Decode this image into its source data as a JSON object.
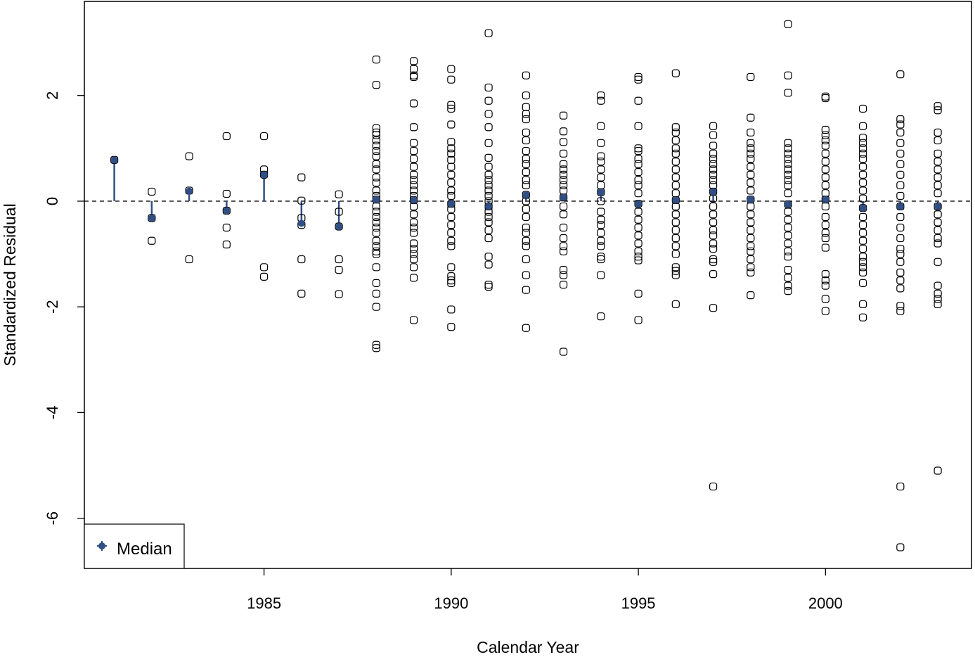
{
  "chart_data": {
    "type": "scatter",
    "xlabel": "Calendar Year",
    "ylabel": "Standardized Residual",
    "xlim": [
      1980.2,
      2003.9
    ],
    "ylim": [
      -6.95,
      3.78
    ],
    "x_ticks": [
      1985,
      1990,
      1995,
      2000
    ],
    "y_ticks": [
      -6,
      -4,
      -2,
      0,
      2
    ],
    "reference_line": {
      "y": 0,
      "style": "dashed"
    },
    "legend": {
      "position": "bottom-left",
      "entries": [
        "Median"
      ]
    },
    "colors": {
      "median": "#2f4f85",
      "points": "#000000"
    },
    "median": {
      "name": "Median",
      "x": [
        1981,
        1982,
        1983,
        1984,
        1985,
        1986,
        1987,
        1988,
        1989,
        1990,
        1991,
        1992,
        1993,
        1994,
        1995,
        1996,
        1997,
        1998,
        1999,
        2000,
        2001,
        2002,
        2003
      ],
      "y": [
        0.78,
        -0.32,
        0.19,
        -0.18,
        0.5,
        -0.42,
        -0.48,
        0.03,
        0.02,
        -0.05,
        -0.1,
        0.12,
        0.07,
        0.17,
        -0.05,
        0.02,
        0.18,
        0.03,
        -0.06,
        0.03,
        -0.13,
        -0.1,
        -0.1
      ]
    },
    "points": [
      {
        "x": 1981,
        "y": [
          0.78
        ]
      },
      {
        "x": 1982,
        "y": [
          0.18,
          -0.32,
          -0.75
        ]
      },
      {
        "x": 1983,
        "y": [
          0.85,
          0.2,
          -1.1
        ]
      },
      {
        "x": 1984,
        "y": [
          1.23,
          0.14,
          -0.18,
          -0.5,
          -0.82
        ]
      },
      {
        "x": 1985,
        "y": [
          1.23,
          0.6,
          0.5,
          -1.25,
          -1.43
        ]
      },
      {
        "x": 1986,
        "y": [
          0.45,
          0.01,
          -0.32,
          -0.45,
          -1.1,
          -1.75
        ]
      },
      {
        "x": 1987,
        "y": [
          0.13,
          -0.2,
          -0.48,
          -1.1,
          -1.3,
          -1.76
        ]
      },
      {
        "x": 1988,
        "y": [
          2.68,
          2.2,
          1.38,
          1.3,
          1.25,
          1.15,
          1.05,
          0.95,
          0.85,
          0.7,
          0.6,
          0.45,
          0.35,
          0.2,
          0.1,
          0.03,
          -0.1,
          -0.2,
          -0.3,
          -0.4,
          -0.5,
          -0.6,
          -0.75,
          -0.85,
          -0.95,
          -1.0,
          -1.25,
          -1.55,
          -1.75,
          -2.0,
          -2.72,
          -2.78
        ]
      },
      {
        "x": 1989,
        "y": [
          2.65,
          2.5,
          2.38,
          2.35,
          1.85,
          1.4,
          1.1,
          0.95,
          0.8,
          0.65,
          0.5,
          0.4,
          0.3,
          0.2,
          0.1,
          0.02,
          -0.1,
          -0.25,
          -0.4,
          -0.5,
          -0.6,
          -0.8,
          -0.9,
          -1.0,
          -1.1,
          -1.25,
          -1.45,
          -2.25
        ]
      },
      {
        "x": 1990,
        "y": [
          2.5,
          2.3,
          1.82,
          1.75,
          1.45,
          1.12,
          1.0,
          0.9,
          0.78,
          0.65,
          0.5,
          0.35,
          0.2,
          0.1,
          -0.05,
          -0.15,
          -0.3,
          -0.45,
          -0.6,
          -0.75,
          -0.85,
          -1.25,
          -1.42,
          -1.5,
          -1.55,
          -2.05,
          -2.38
        ]
      },
      {
        "x": 1991,
        "y": [
          3.18,
          2.15,
          1.9,
          1.65,
          1.4,
          1.1,
          0.82,
          0.65,
          0.5,
          0.4,
          0.3,
          0.2,
          0.1,
          0.0,
          -0.1,
          -0.2,
          -0.3,
          -0.4,
          -0.55,
          -0.7,
          -1.05,
          -1.2,
          -1.58,
          -1.62
        ]
      },
      {
        "x": 1992,
        "y": [
          2.38,
          2.0,
          1.78,
          1.65,
          1.55,
          1.3,
          1.15,
          0.95,
          0.8,
          0.7,
          0.55,
          0.4,
          0.3,
          0.12,
          0.0,
          -0.15,
          -0.3,
          -0.5,
          -0.6,
          -0.75,
          -0.85,
          -1.1,
          -1.4,
          -1.68,
          -2.4
        ]
      },
      {
        "x": 1993,
        "y": [
          1.62,
          1.32,
          1.12,
          0.9,
          0.7,
          0.6,
          0.5,
          0.4,
          0.3,
          0.2,
          0.07,
          -0.1,
          -0.25,
          -0.5,
          -0.7,
          -0.85,
          -0.95,
          -1.3,
          -1.4,
          -1.58,
          -2.85
        ]
      },
      {
        "x": 1994,
        "y": [
          2.0,
          1.9,
          1.42,
          1.1,
          0.85,
          0.75,
          0.6,
          0.45,
          0.3,
          0.17,
          0.0,
          -0.2,
          -0.35,
          -0.45,
          -0.6,
          -0.75,
          -0.85,
          -1.05,
          -1.1,
          -1.4,
          -2.18
        ]
      },
      {
        "x": 1995,
        "y": [
          2.35,
          2.3,
          1.9,
          1.42,
          1.0,
          0.95,
          0.8,
          0.7,
          0.55,
          0.4,
          0.3,
          0.15,
          -0.05,
          -0.2,
          -0.35,
          -0.5,
          -0.65,
          -0.8,
          -0.95,
          -1.05,
          -1.12,
          -1.75,
          -2.25
        ]
      },
      {
        "x": 1996,
        "y": [
          2.42,
          1.4,
          1.3,
          1.15,
          1.0,
          0.9,
          0.75,
          0.6,
          0.45,
          0.3,
          0.15,
          0.02,
          -0.1,
          -0.25,
          -0.4,
          -0.55,
          -0.7,
          -0.85,
          -1.0,
          -1.25,
          -1.32,
          -1.4,
          -1.95
        ]
      },
      {
        "x": 1997,
        "y": [
          1.42,
          1.25,
          1.05,
          0.9,
          0.8,
          0.7,
          0.6,
          0.5,
          0.4,
          0.3,
          0.18,
          0.05,
          -0.1,
          -0.25,
          -0.4,
          -0.55,
          -0.65,
          -0.8,
          -0.9,
          -1.1,
          -1.15,
          -1.38,
          -2.02,
          -5.4
        ]
      },
      {
        "x": 1998,
        "y": [
          2.35,
          1.58,
          1.3,
          1.1,
          1.0,
          0.9,
          0.8,
          0.65,
          0.5,
          0.35,
          0.2,
          0.03,
          -0.1,
          -0.25,
          -0.4,
          -0.55,
          -0.7,
          -0.85,
          -0.95,
          -1.1,
          -1.25,
          -1.35,
          -1.78
        ]
      },
      {
        "x": 1999,
        "y": [
          3.35,
          2.38,
          2.05,
          1.1,
          1.0,
          0.9,
          0.8,
          0.7,
          0.6,
          0.5,
          0.4,
          0.3,
          0.15,
          -0.06,
          -0.2,
          -0.35,
          -0.5,
          -0.65,
          -0.8,
          -0.95,
          -1.05,
          -1.3,
          -1.45,
          -1.6,
          -1.7
        ]
      },
      {
        "x": 2000,
        "y": [
          1.98,
          1.95,
          1.35,
          1.25,
          1.15,
          1.05,
          0.9,
          0.75,
          0.6,
          0.45,
          0.3,
          0.15,
          0.03,
          -0.1,
          -0.3,
          -0.45,
          -0.6,
          -0.7,
          -0.88,
          -1.38,
          -1.5,
          -1.6,
          -1.85,
          -2.08
        ]
      },
      {
        "x": 2001,
        "y": [
          1.75,
          1.42,
          1.2,
          1.1,
          1.0,
          0.9,
          0.8,
          0.65,
          0.5,
          0.35,
          0.2,
          0.05,
          -0.13,
          -0.3,
          -0.45,
          -0.6,
          -0.75,
          -0.9,
          -1.05,
          -1.15,
          -1.25,
          -1.35,
          -1.55,
          -1.95,
          -2.2
        ]
      },
      {
        "x": 2002,
        "y": [
          2.4,
          1.55,
          1.45,
          1.3,
          1.1,
          0.9,
          0.7,
          0.5,
          0.3,
          0.1,
          -0.1,
          -0.3,
          -0.5,
          -0.7,
          -0.9,
          -1.0,
          -1.15,
          -1.35,
          -1.5,
          -1.65,
          -1.98,
          -2.08,
          -5.4,
          -6.55
        ]
      },
      {
        "x": 2003,
        "y": [
          1.8,
          1.72,
          1.3,
          1.15,
          0.9,
          0.75,
          0.6,
          0.45,
          0.3,
          0.15,
          -0.1,
          -0.25,
          -0.4,
          -0.55,
          -0.7,
          -0.8,
          -1.15,
          -1.6,
          -1.75,
          -1.85,
          -1.95,
          -5.1
        ]
      }
    ]
  }
}
